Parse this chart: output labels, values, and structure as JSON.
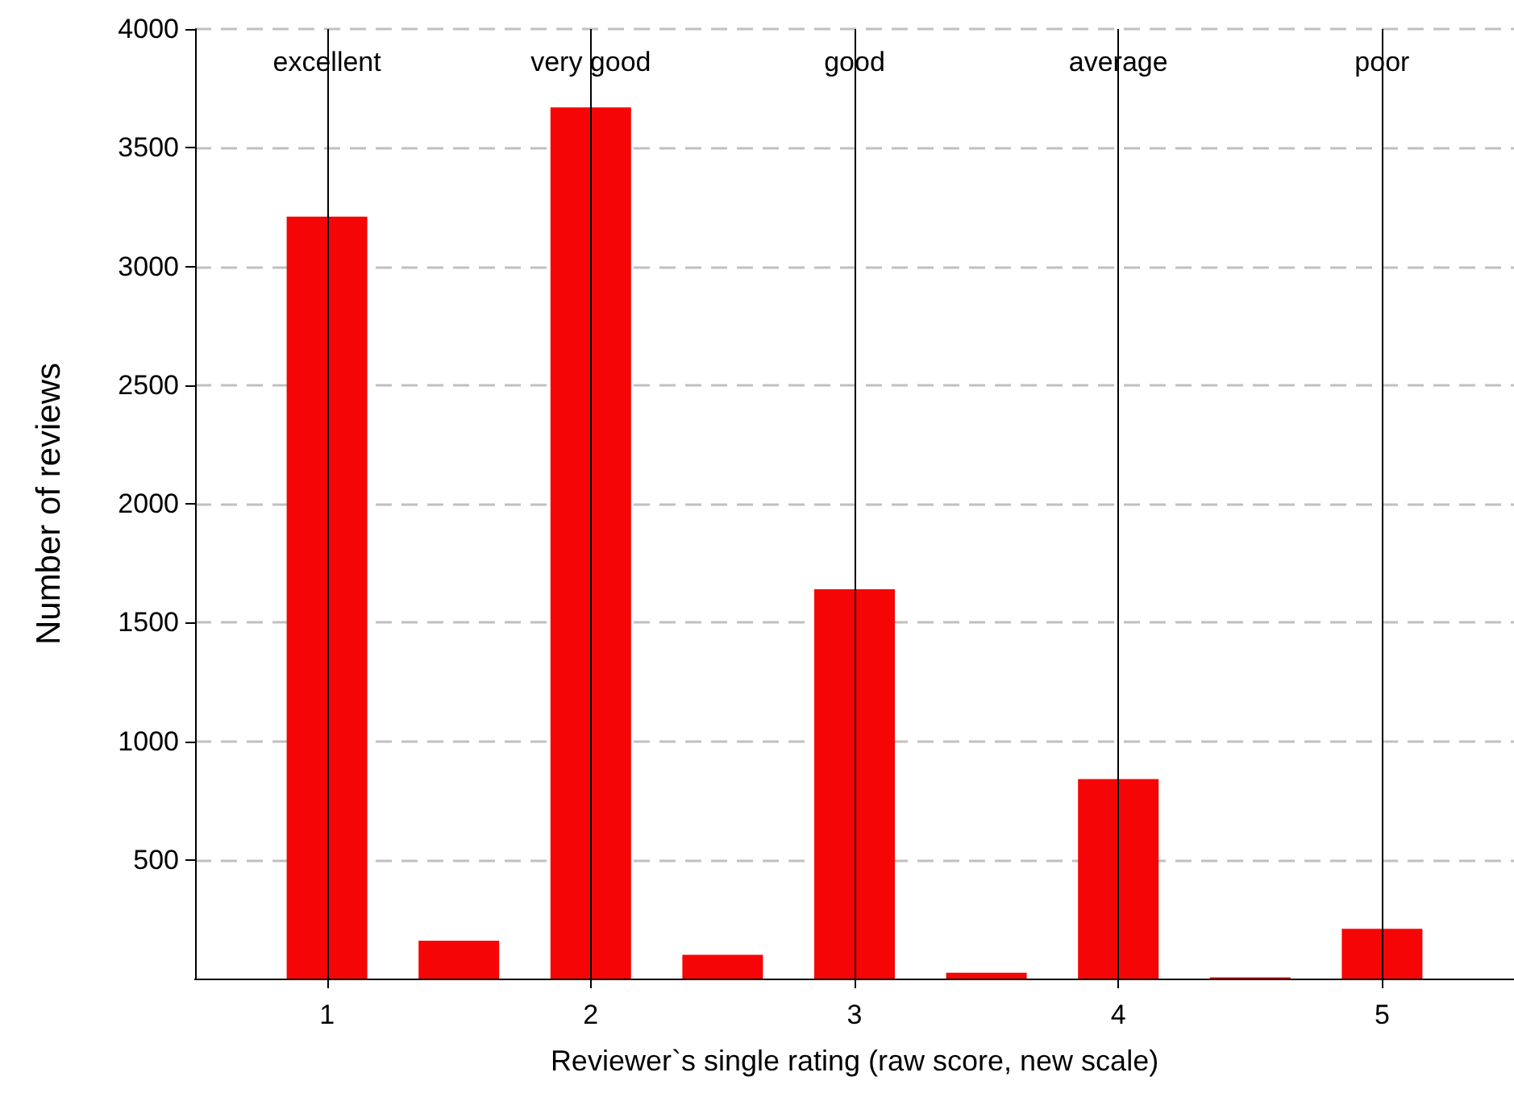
{
  "chart_data": {
    "type": "bar",
    "xlabel": "Reviewer`s single rating (raw score, new scale)",
    "ylabel": "Number of reviews",
    "x": [
      1,
      1.5,
      2,
      2.5,
      3,
      3.5,
      4,
      4.5,
      5
    ],
    "values": [
      3210,
      160,
      3670,
      100,
      1640,
      25,
      840,
      5,
      210
    ],
    "color": "#f50505",
    "xlim": [
      0.5,
      5.5
    ],
    "xticks": [
      1,
      2,
      3,
      4,
      5
    ],
    "ylim": [
      0,
      4000
    ],
    "yticks": [
      500,
      1000,
      1500,
      2000,
      2500,
      3000,
      3500,
      4000
    ],
    "grid": "y",
    "ref_lines": [
      {
        "axis": "x",
        "value": 1,
        "label": "excellent",
        "color": "#000000"
      },
      {
        "axis": "x",
        "value": 2,
        "label": "very good",
        "color": "#000000"
      },
      {
        "axis": "x",
        "value": 3,
        "label": "good",
        "color": "#000000"
      },
      {
        "axis": "x",
        "value": 4,
        "label": "average",
        "color": "#000000"
      },
      {
        "axis": "x",
        "value": 5,
        "label": "poor",
        "color": "#000000"
      }
    ]
  }
}
